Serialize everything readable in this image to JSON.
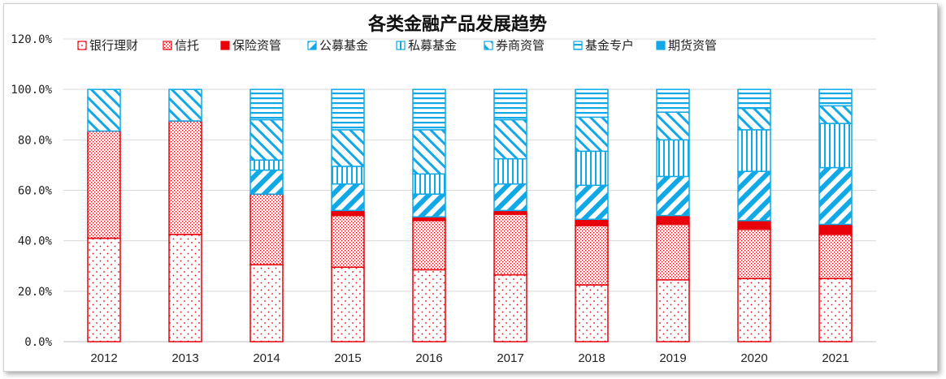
{
  "chart_data": {
    "type": "bar",
    "stacked": true,
    "title": "各类金融产品发展趋势",
    "categories": [
      "2012",
      "2013",
      "2014",
      "2015",
      "2016",
      "2017",
      "2018",
      "2019",
      "2020",
      "2021"
    ],
    "ylim": [
      0,
      120
    ],
    "yticks": [
      "0.0%",
      "20.0%",
      "40.0%",
      "60.0%",
      "80.0%",
      "100.0%",
      "120.0%"
    ],
    "ytick_values": [
      0,
      20,
      40,
      60,
      80,
      100,
      120
    ],
    "grid": true,
    "legend_position": "top",
    "series": [
      {
        "name": "银行理财",
        "color": "#e8000b",
        "pattern": "dots-sparse",
        "values": [
          41.0,
          42.5,
          30.5,
          29.5,
          28.5,
          26.5,
          22.5,
          24.5,
          25.0,
          25.0
        ]
      },
      {
        "name": "信托",
        "color": "#e8000b",
        "pattern": "dots-dense",
        "values": [
          42.5,
          45.0,
          28.0,
          20.5,
          19.5,
          24.0,
          23.5,
          22.0,
          19.5,
          17.5
        ]
      },
      {
        "name": "保险资管",
        "color": "#e8000b",
        "pattern": "solid",
        "values": [
          0.0,
          0.0,
          0.0,
          2.0,
          1.5,
          1.5,
          2.5,
          3.5,
          3.5,
          4.0
        ]
      },
      {
        "name": "公募基金",
        "color": "#11a8e6",
        "pattern": "diag-thick",
        "values": [
          0.0,
          0.0,
          9.5,
          10.5,
          9.0,
          10.5,
          13.5,
          15.5,
          19.5,
          22.5
        ]
      },
      {
        "name": "私募基金",
        "color": "#11a8e6",
        "pattern": "vertical",
        "values": [
          0.0,
          0.0,
          4.0,
          7.0,
          8.0,
          10.0,
          13.5,
          14.5,
          16.5,
          17.5
        ]
      },
      {
        "name": "券商资管",
        "color": "#11a8e6",
        "pattern": "diag-wide",
        "values": [
          16.5,
          12.5,
          16.0,
          14.5,
          17.5,
          15.5,
          13.5,
          11.0,
          8.5,
          7.0
        ]
      },
      {
        "name": "基金专户",
        "color": "#11a8e6",
        "pattern": "horizontal",
        "values": [
          0.0,
          0.0,
          12.0,
          16.0,
          16.0,
          12.0,
          11.0,
          9.0,
          7.5,
          6.5
        ]
      },
      {
        "name": "期货资管",
        "color": "#11a8e6",
        "pattern": "solid",
        "values": [
          0.0,
          0.0,
          0.0,
          0.0,
          0.0,
          0.0,
          0.0,
          0.0,
          0.0,
          0.0
        ]
      }
    ]
  }
}
